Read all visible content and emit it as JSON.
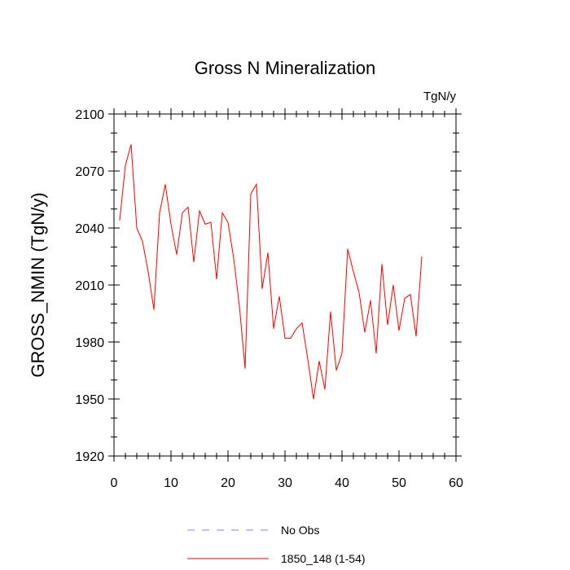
{
  "chart_data": {
    "type": "line",
    "title": "Gross N Mineralization",
    "units": "TgN/y",
    "ylabel": "GROSS_NMIN  (TgN/y)",
    "xlabel": "",
    "xlim": [
      0,
      60
    ],
    "ylim": [
      1920,
      2100
    ],
    "xticks": [
      "0",
      "10",
      "20",
      "30",
      "40",
      "50",
      "60"
    ],
    "yticks": [
      "1920",
      "1950",
      "1980",
      "2010",
      "2040",
      "2070",
      "2100"
    ],
    "series": [
      {
        "name": "No Obs",
        "color": "#8080ff",
        "dash": "dashed",
        "x": [],
        "values": []
      },
      {
        "name": "1850_148 (1-54)",
        "color": "#ff0000",
        "dash": "solid",
        "x": [
          1,
          2,
          3,
          4,
          5,
          6,
          7,
          8,
          9,
          10,
          11,
          12,
          13,
          14,
          15,
          16,
          17,
          18,
          19,
          20,
          21,
          22,
          23,
          24,
          25,
          26,
          27,
          28,
          29,
          30,
          31,
          32,
          33,
          34,
          35,
          36,
          37,
          38,
          39,
          40,
          41,
          42,
          43,
          44,
          45,
          46,
          47,
          48,
          49,
          50,
          51,
          52,
          53,
          54
        ],
        "values": [
          2044,
          2073,
          2084,
          2040,
          2033,
          2017,
          1997,
          2048,
          2063,
          2042,
          2026,
          2048,
          2051,
          2022,
          2049,
          2042,
          2043,
          2013,
          2048,
          2043,
          2024,
          1999,
          1966,
          2058,
          2063,
          2008,
          2027,
          1987,
          2004,
          1982,
          1982,
          1987,
          1990,
          1971,
          1950,
          1970,
          1955,
          1996,
          1965,
          1974,
          2029,
          2017,
          2006,
          1985,
          2002,
          1974,
          2021,
          1989,
          2010,
          1986,
          2003,
          2005,
          1983,
          2025
        ]
      }
    ],
    "legend": {
      "position": "bottom",
      "entries": [
        "No Obs",
        "1850_148 (1-54)"
      ]
    }
  }
}
